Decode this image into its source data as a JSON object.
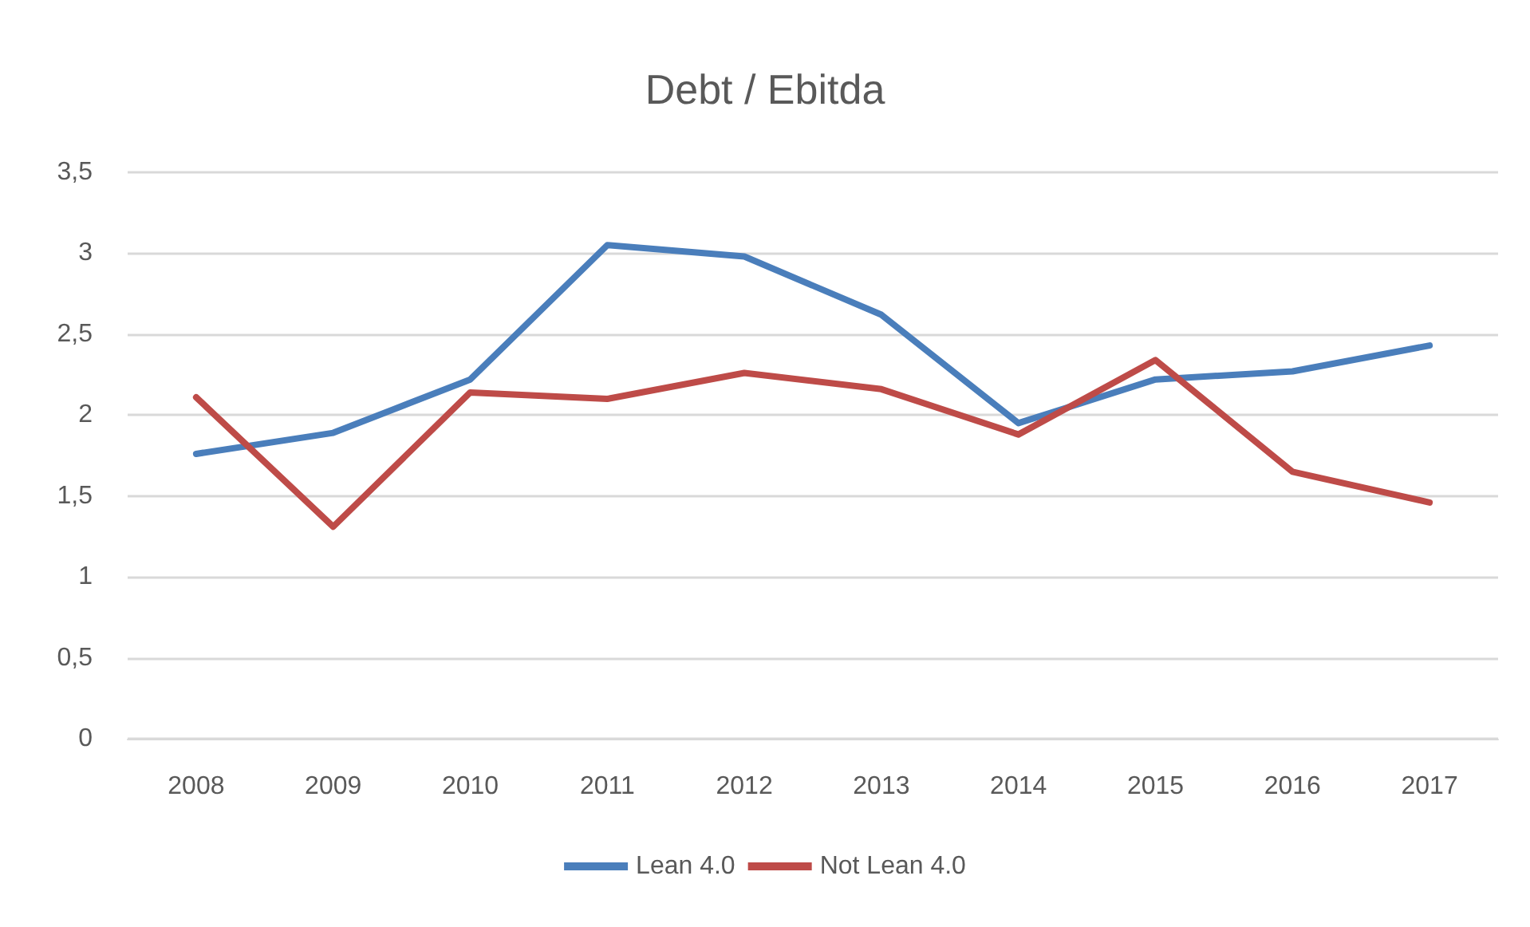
{
  "chart_data": {
    "type": "line",
    "title": "Debt / Ebitda",
    "categories": [
      "2008",
      "2009",
      "2010",
      "2011",
      "2012",
      "2013",
      "2014",
      "2015",
      "2016",
      "2017"
    ],
    "series": [
      {
        "name": "Lean 4.0",
        "color": "#4a7ebb",
        "values": [
          1.76,
          1.89,
          2.22,
          3.05,
          2.98,
          2.62,
          1.95,
          2.22,
          2.27,
          2.43
        ]
      },
      {
        "name": "Not Lean 4.0",
        "color": "#be4b48",
        "values": [
          2.11,
          1.31,
          2.14,
          2.1,
          2.26,
          2.16,
          1.88,
          2.34,
          1.65,
          1.46
        ]
      }
    ],
    "ylim": [
      0,
      3.5
    ],
    "yticks": [
      {
        "value": 0,
        "label": "0"
      },
      {
        "value": 0.5,
        "label": "0,5"
      },
      {
        "value": 1,
        "label": "1"
      },
      {
        "value": 1.5,
        "label": "1,5"
      },
      {
        "value": 2,
        "label": "2"
      },
      {
        "value": 2.5,
        "label": "2,5"
      },
      {
        "value": 3,
        "label": "3"
      },
      {
        "value": 3.5,
        "label": "3,5"
      }
    ],
    "grid": "y",
    "legend": "bottom",
    "marker": "none",
    "line_style": "solid"
  }
}
